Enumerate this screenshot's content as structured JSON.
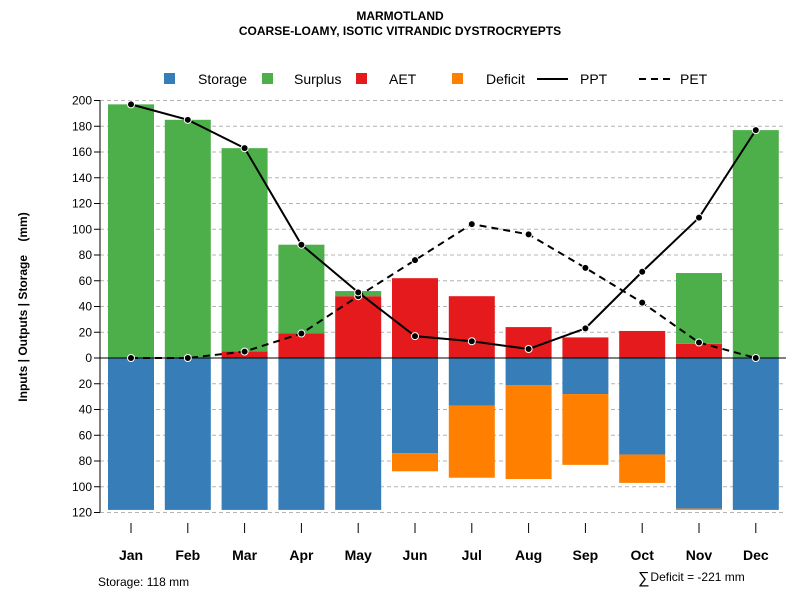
{
  "chart_data": {
    "type": "bar",
    "title": "MARMOTLAND",
    "subtitle": "COARSE-LOAMY, ISOTIC VITRANDIC DYSTROCRYEPTS",
    "ylabel": "Inputs | Outputs | Storage    (mm)",
    "categories": [
      "Jan",
      "Feb",
      "Mar",
      "Apr",
      "May",
      "Jun",
      "Jul",
      "Aug",
      "Sep",
      "Oct",
      "Nov",
      "Dec"
    ],
    "ylim": [
      -120,
      200
    ],
    "yticks": [
      200,
      180,
      160,
      140,
      120,
      100,
      80,
      60,
      40,
      20,
      0,
      -20,
      -40,
      -60,
      -80,
      -100,
      -120
    ],
    "ytick_labels": [
      "200",
      "180",
      "160",
      "140",
      "120",
      "100",
      "80",
      "60",
      "40",
      "20",
      "0",
      "20",
      "40",
      "60",
      "80",
      "100",
      "120"
    ],
    "legend": [
      {
        "name": "Storage",
        "color": "#377eb8",
        "kind": "box"
      },
      {
        "name": "Surplus",
        "color": "#4daf4a",
        "kind": "box"
      },
      {
        "name": "AET",
        "color": "#e41a1c",
        "kind": "box"
      },
      {
        "name": "Deficit",
        "color": "#ff7f00",
        "kind": "box"
      },
      {
        "name": "PPT",
        "color": "#000000",
        "kind": "solid"
      },
      {
        "name": "PET",
        "color": "#000000",
        "kind": "dashed"
      }
    ],
    "series": [
      {
        "name": "AET",
        "values": [
          0,
          0,
          5,
          19,
          48,
          62,
          48,
          24,
          16,
          21,
          11,
          0
        ]
      },
      {
        "name": "Surplus",
        "values": [
          197,
          185,
          158,
          69,
          4,
          0,
          0,
          0,
          0,
          0,
          55,
          177
        ]
      },
      {
        "name": "Storage",
        "values": [
          118,
          118,
          118,
          118,
          118,
          74,
          37,
          21,
          28,
          75,
          117,
          118
        ]
      },
      {
        "name": "Deficit",
        "values": [
          0,
          0,
          0,
          0,
          0,
          14,
          56,
          73,
          55,
          22,
          1,
          0
        ]
      },
      {
        "name": "PPT",
        "values": [
          197,
          185,
          163,
          88,
          51,
          17,
          13,
          7,
          23,
          67,
          109,
          177
        ]
      },
      {
        "name": "PET",
        "values": [
          0,
          0,
          5,
          19,
          48,
          76,
          104,
          96,
          70,
          43,
          12,
          0
        ]
      }
    ],
    "notes": {
      "storage": "Storage: 118 mm",
      "deficit": "Deficit = -221 mm"
    }
  }
}
